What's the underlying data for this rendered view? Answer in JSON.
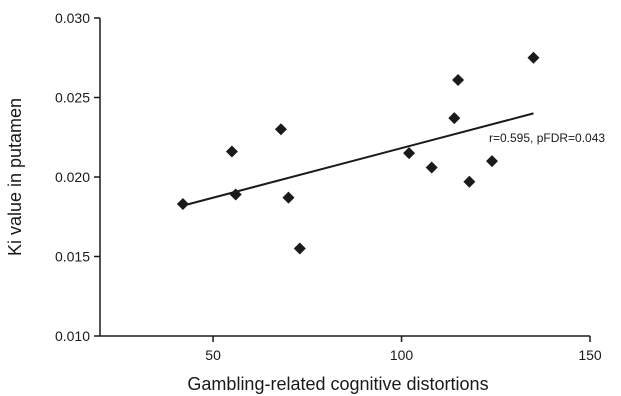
{
  "chart_data": {
    "type": "scatter",
    "title": "",
    "xlabel": "Gambling-related cognitive distortions",
    "ylabel": "Ki value in putamen",
    "xlim": [
      20,
      150
    ],
    "ylim": [
      0.01,
      0.03
    ],
    "x_ticks": [
      50,
      100,
      150
    ],
    "x_tick_labels": [
      "50",
      "100",
      "150"
    ],
    "y_ticks": [
      0.01,
      0.015,
      0.02,
      0.025,
      0.03
    ],
    "y_tick_labels": [
      "0.010",
      "0.015",
      "0.020",
      "0.025",
      "0.030"
    ],
    "grid": false,
    "marker": "diamond",
    "marker_color": "#1a1a1a",
    "points": [
      {
        "x": 42,
        "y": 0.0183
      },
      {
        "x": 55,
        "y": 0.0216
      },
      {
        "x": 56,
        "y": 0.0189
      },
      {
        "x": 68,
        "y": 0.023
      },
      {
        "x": 70,
        "y": 0.0187
      },
      {
        "x": 73,
        "y": 0.0155
      },
      {
        "x": 102,
        "y": 0.0215
      },
      {
        "x": 108,
        "y": 0.0206
      },
      {
        "x": 114,
        "y": 0.0237
      },
      {
        "x": 115,
        "y": 0.0261
      },
      {
        "x": 118,
        "y": 0.0197
      },
      {
        "x": 124,
        "y": 0.021
      },
      {
        "x": 135,
        "y": 0.0275
      }
    ],
    "trendline": {
      "x": [
        42,
        135
      ],
      "y": [
        0.0182,
        0.024
      ]
    },
    "annotation": "r=0.595, pFDR=0.043"
  }
}
